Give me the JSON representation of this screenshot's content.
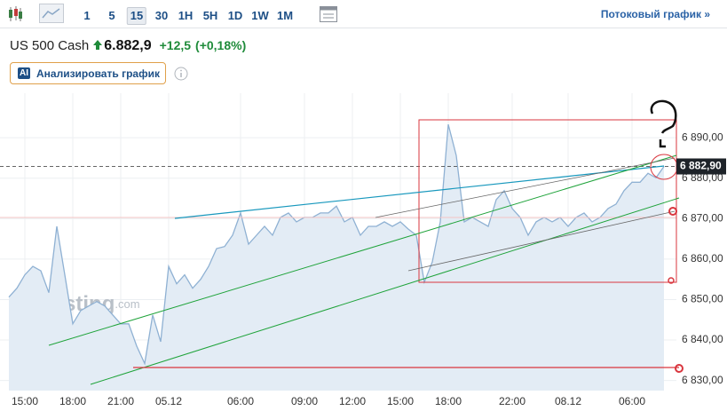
{
  "toolbar": {
    "timeframes": [
      "1",
      "5",
      "15",
      "30",
      "1H",
      "5H",
      "1D",
      "1W",
      "1M"
    ],
    "selected_index": 2,
    "stream_link": "Потоковый график »"
  },
  "header": {
    "instrument": "US 500 Cash",
    "price": "6.882,9",
    "change": "+12,5",
    "change_pct": "(+0,18%)"
  },
  "ai_button": {
    "badge": "AI",
    "label": "Анализировать график"
  },
  "chart_data": {
    "type": "area",
    "color": "#8fb1d3",
    "fill": "#e3ecf5",
    "watermark": "Investing",
    "watermark_suffix": ".com",
    "categories": [
      null,
      null,
      "15:00",
      null,
      null,
      null,
      null,
      null,
      "18:00",
      null,
      null,
      null,
      null,
      null,
      "21:00",
      null,
      null,
      null,
      null,
      null,
      "05.12",
      null,
      null,
      null,
      null,
      null,
      null,
      null,
      null,
      "06:00",
      null,
      null,
      null,
      null,
      null,
      null,
      null,
      "09:00",
      null,
      null,
      null,
      null,
      null,
      "12:00",
      null,
      null,
      null,
      null,
      null,
      "15:00",
      null,
      null,
      null,
      null,
      null,
      "18:00",
      null,
      null,
      null,
      null,
      null,
      null,
      null,
      "22:00",
      null,
      null,
      null,
      null,
      null,
      null,
      "08.12",
      null,
      null,
      null,
      null,
      null,
      null,
      null,
      "06:00",
      null,
      null,
      null,
      null
    ],
    "values": [
      6850.6,
      6852.8,
      6856.1,
      6858.2,
      6857.1,
      6851.7,
      6868.1,
      6856.1,
      6844.0,
      6847.3,
      6848.4,
      6849.5,
      6848.4,
      6846.2,
      6844.0,
      6844.0,
      6838.5,
      6834.2,
      6846.2,
      6839.6,
      6858.2,
      6853.9,
      6856.1,
      6852.8,
      6855.0,
      6858.2,
      6862.6,
      6863.1,
      6865.9,
      6871.4,
      6863.7,
      6865.9,
      6868.1,
      6865.9,
      6870.3,
      6871.4,
      6869.2,
      6870.3,
      6870.3,
      6871.4,
      6871.4,
      6873.1,
      6869.2,
      6870.3,
      6865.9,
      6868.1,
      6868.1,
      6869.2,
      6868.1,
      6869.2,
      6867.4,
      6865.9,
      6854.3,
      6859.3,
      6869.2,
      6893.3,
      6885.6,
      6869.2,
      6870.3,
      6869.2,
      6868.1,
      6874.7,
      6876.9,
      6872.5,
      6870.3,
      6865.9,
      6869.2,
      6870.3,
      6869.2,
      6870.3,
      6868.1,
      6870.3,
      6871.4,
      6869.2,
      6870.3,
      6872.5,
      6873.6,
      6876.9,
      6879.0,
      6879.0,
      6881.2,
      6880.1,
      6882.9
    ],
    "ylim": [
      6827.5,
      6901
    ],
    "yticks": [
      {
        "value": 6830,
        "label": "6 830,00"
      },
      {
        "value": 6840,
        "label": "6 840,00"
      },
      {
        "value": 6850,
        "label": "6 850,00"
      },
      {
        "value": 6860,
        "label": "6 860,00"
      },
      {
        "value": 6870,
        "label": "6 870,00"
      },
      {
        "value": 6880,
        "label": "6 880,00"
      },
      {
        "value": 6890,
        "label": "6 890,00"
      }
    ],
    "grid": true,
    "last_price": {
      "value": 6882.9,
      "label": "6 882,90"
    }
  }
}
